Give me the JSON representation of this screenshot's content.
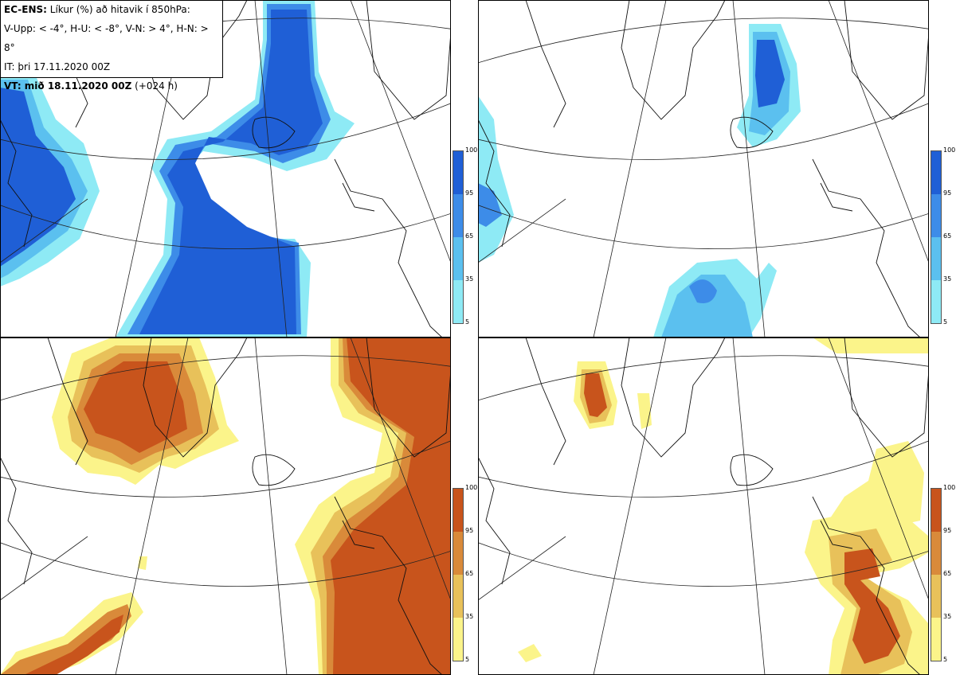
{
  "info": {
    "line1_bold": "EC-ENS:",
    "line1_rest": "Líkur (%) að hitavik í 850hPa:",
    "line2": "V-Upp: < -4°, H-U: < -8°, V-N: > 4°, H-N: > 8°",
    "line3": "IT: þri 17.11.2020 00Z",
    "line4_bold": "VT: mið 18.11.2020 00Z",
    "line4_rest": "(+024 h)"
  },
  "colorbar_blue": {
    "ticks": [
      "100",
      "95",
      "65",
      "35",
      "5"
    ],
    "colors": [
      "#1f5fd6",
      "#3d8ce8",
      "#5bc0ef",
      "#8eeaf5"
    ]
  },
  "colorbar_orange": {
    "ticks": [
      "100",
      "95",
      "65",
      "35",
      "5"
    ],
    "colors": [
      "#c8541c",
      "#d98a3a",
      "#e8c15a",
      "#fbf48a"
    ]
  }
}
